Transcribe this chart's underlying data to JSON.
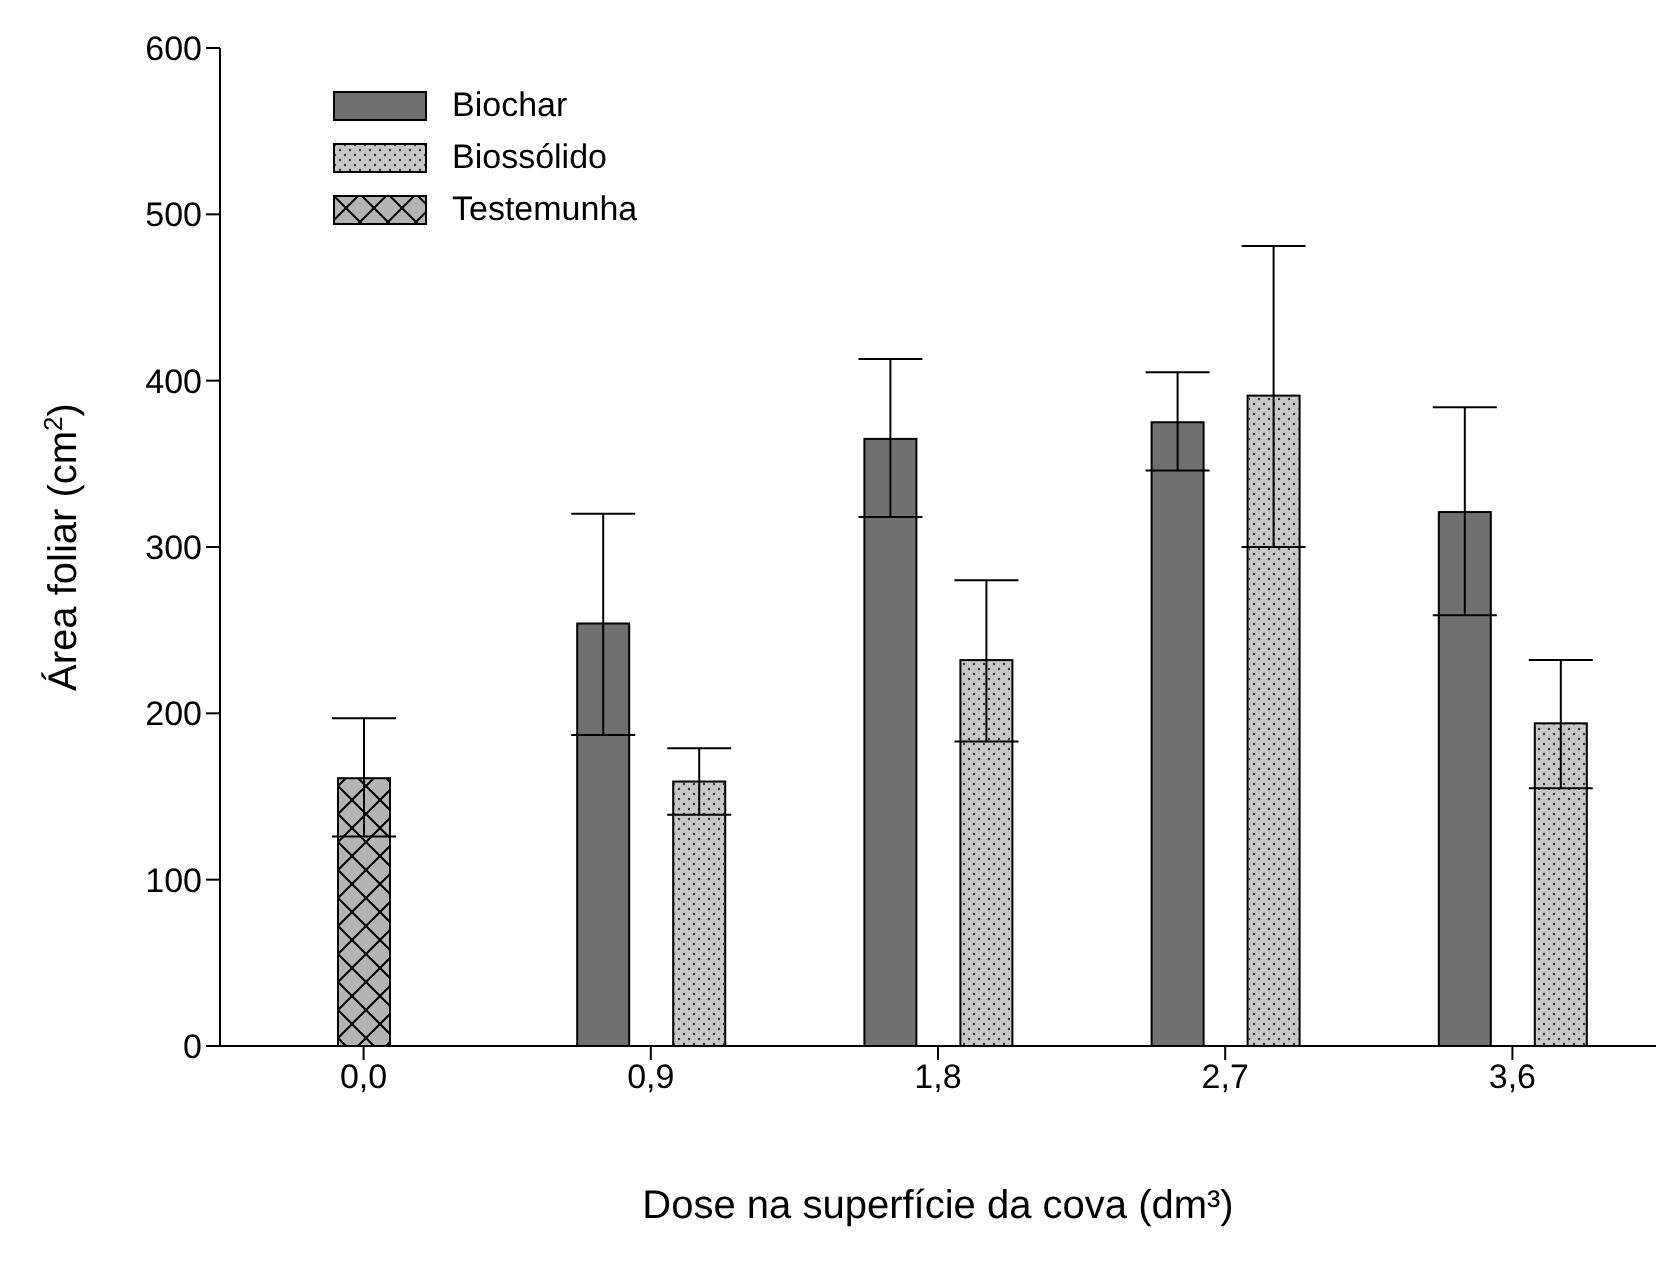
{
  "chart_data": {
    "type": "bar",
    "xlabel": "Dose na superfície da cova (dm³)",
    "ylabel": "Área foliar (cm$^{2}$)",
    "categories": [
      "0,0",
      "0,9",
      "1,8",
      "2,7",
      "3,6"
    ],
    "series": [
      {
        "name": "Biochar",
        "color": "#707070",
        "values": [
          null,
          254,
          365,
          375,
          321
        ],
        "errors": [
          null,
          [
            187,
            320
          ],
          [
            318,
            413
          ],
          [
            346,
            405
          ],
          [
            259,
            384
          ]
        ]
      },
      {
        "name": "Biossólido",
        "color": "#c8c8c8",
        "values": [
          null,
          159,
          232,
          391,
          194
        ],
        "errors": [
          null,
          [
            139,
            179
          ],
          [
            183,
            280
          ],
          [
            300,
            481
          ],
          [
            155,
            232
          ]
        ]
      },
      {
        "name": "Testemunha",
        "color": "#b4b4b4",
        "values": [
          161,
          null,
          null,
          null,
          null
        ],
        "errors": [
          [
            126,
            197
          ],
          null,
          null,
          null,
          null
        ]
      }
    ],
    "ylim": [
      0,
      600
    ],
    "yticks": [
      0,
      100,
      200,
      300,
      400,
      500,
      600
    ],
    "grid": false,
    "legend": "top left"
  }
}
